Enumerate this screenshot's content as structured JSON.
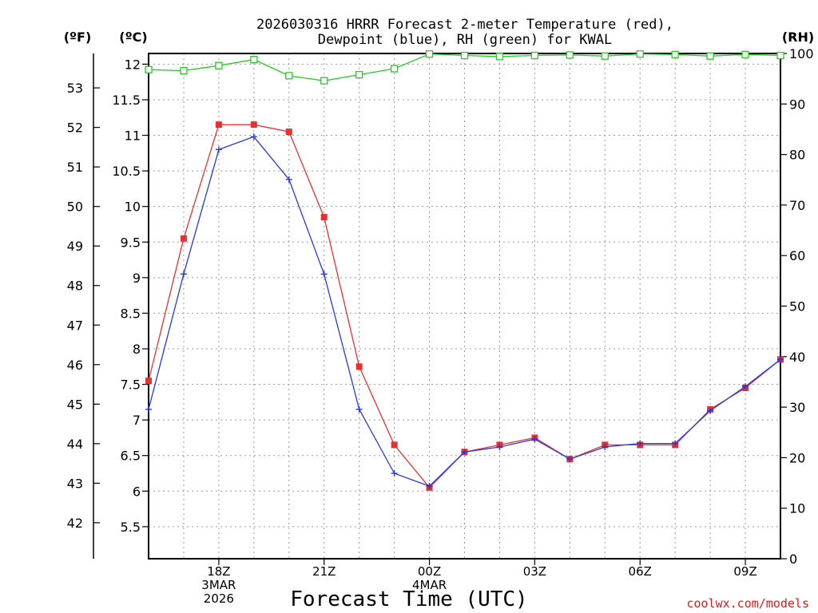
{
  "chart_data": {
    "type": "line",
    "title_lines": [
      "2026030316 HRRR Forecast 2-meter Temperature (red),",
      "Dewpoint (blue), RH (green) for KWAL"
    ],
    "units": {
      "fahrenheit": "(ºF)",
      "celsius": "(ºC)",
      "rh": "(RH)"
    },
    "xlabel": "Forecast Time (UTC)",
    "credit": "coolwx.com/models",
    "x_hours": [
      16,
      17,
      18,
      19,
      20,
      21,
      22,
      23,
      24,
      25,
      26,
      27,
      28,
      29,
      30,
      31,
      32,
      33,
      34
    ],
    "xlim": [
      16,
      34
    ],
    "x_ticks": [
      {
        "hour": 18,
        "lines": [
          "18Z",
          "3MAR",
          "2026"
        ]
      },
      {
        "hour": 21,
        "lines": [
          "21Z"
        ]
      },
      {
        "hour": 24,
        "lines": [
          "00Z",
          "4MAR"
        ]
      },
      {
        "hour": 27,
        "lines": [
          "03Z"
        ]
      },
      {
        "hour": 30,
        "lines": [
          "06Z"
        ]
      },
      {
        "hour": 33,
        "lines": [
          "09Z"
        ]
      }
    ],
    "celsius_axis": {
      "ylim": [
        5.05,
        12.15
      ],
      "ticks": [
        "5.5",
        "6",
        "6.5",
        "7",
        "7.5",
        "8",
        "8.5",
        "9",
        "9.5",
        "10",
        "10.5",
        "11",
        "11.5",
        "12"
      ]
    },
    "fahrenheit_axis": {
      "ticks": [
        "42",
        "43",
        "44",
        "45",
        "46",
        "47",
        "48",
        "49",
        "50",
        "51",
        "52",
        "53"
      ]
    },
    "rh_axis": {
      "ylim": [
        0,
        100
      ],
      "ticks": [
        "0",
        "10",
        "20",
        "30",
        "40",
        "50",
        "60",
        "70",
        "80",
        "90",
        "100"
      ]
    },
    "series": [
      {
        "name": "Temperature",
        "axis": "celsius",
        "color": "#e83030",
        "marker": "filled-square",
        "values": [
          7.55,
          9.55,
          11.15,
          11.15,
          11.05,
          9.85,
          7.75,
          6.65,
          6.05,
          6.55,
          6.65,
          6.75,
          6.45,
          6.65,
          6.65,
          6.65,
          7.15,
          7.45,
          7.85
        ]
      },
      {
        "name": "Dewpoint",
        "axis": "celsius",
        "color": "#2838e0",
        "marker": "plus",
        "values": [
          7.15,
          9.05,
          10.8,
          10.98,
          10.38,
          9.05,
          7.15,
          6.25,
          6.07,
          6.55,
          6.62,
          6.73,
          6.45,
          6.62,
          6.67,
          6.67,
          7.13,
          7.47,
          7.85
        ]
      },
      {
        "name": "RH",
        "axis": "rh",
        "color": "#20d020",
        "marker": "open-square",
        "values": [
          96.8,
          96.6,
          97.6,
          98.8,
          95.6,
          94.6,
          95.8,
          97.0,
          99.9,
          99.6,
          99.4,
          99.6,
          99.7,
          99.5,
          99.9,
          99.8,
          99.5,
          99.8,
          99.6
        ]
      }
    ]
  }
}
